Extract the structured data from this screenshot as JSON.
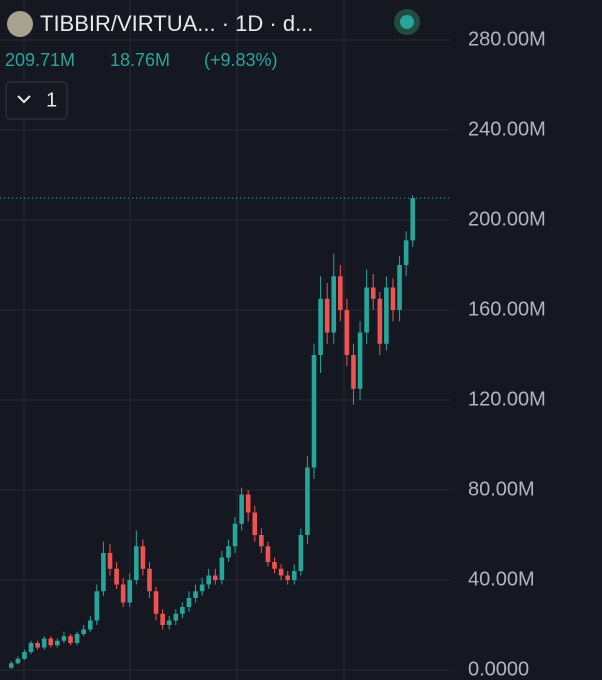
{
  "header": {
    "title": "TIBBIR/VIRTUA... · 1D · d...",
    "close": "209.71M",
    "change": "18.76M",
    "change_pct": "(+9.83%)",
    "indicator_count": "1"
  },
  "chart_data": {
    "type": "candlestick",
    "up_color": "#26a69a",
    "down_color": "#ef5350",
    "grid": true,
    "ylim": [
      -4.44,
      297.78
    ],
    "yticks": [
      {
        "value": 0,
        "label": "0.0000"
      },
      {
        "value": 40,
        "label": "40.00M"
      },
      {
        "value": 80,
        "label": "80.00M"
      },
      {
        "value": 120,
        "label": "120.00M"
      },
      {
        "value": 160,
        "label": "160.00M"
      },
      {
        "value": 200,
        "label": "200.00M"
      },
      {
        "value": 240,
        "label": "240.00M"
      },
      {
        "value": 280,
        "label": "280.00M"
      }
    ],
    "open": [
      1,
      3,
      5,
      8,
      12,
      10,
      14,
      11,
      13,
      15,
      12,
      16,
      18,
      22,
      35,
      52,
      45,
      38,
      30,
      40,
      55,
      45,
      35,
      25,
      20,
      22,
      25,
      28,
      32,
      35,
      38,
      42,
      40,
      50,
      55,
      65,
      78,
      70,
      60,
      55,
      48,
      45,
      42,
      40,
      44,
      60,
      90,
      140,
      165,
      150,
      175,
      160,
      140,
      125,
      150,
      170,
      165,
      145,
      170,
      160,
      180,
      190.95
    ],
    "high": [
      4,
      6,
      9,
      13,
      13,
      15,
      15,
      14,
      17,
      16,
      17,
      20,
      24,
      38,
      57,
      56,
      48,
      41,
      43,
      62,
      58,
      48,
      37,
      27,
      24,
      27,
      30,
      35,
      38,
      41,
      45,
      45,
      53,
      58,
      68,
      81,
      80,
      73,
      63,
      57,
      50,
      47,
      44,
      47,
      63,
      95,
      145,
      175,
      172,
      185,
      180,
      165,
      145,
      155,
      178,
      176,
      168,
      175,
      174,
      184,
      195,
      211
    ],
    "low": [
      0.5,
      2.5,
      4.5,
      7,
      9,
      9,
      10,
      10,
      12,
      11,
      11,
      15,
      17,
      20,
      33,
      42,
      36,
      28,
      28,
      38,
      42,
      32,
      22,
      18,
      18,
      20,
      23,
      26,
      30,
      33,
      36,
      38,
      38,
      48,
      52,
      62,
      66,
      57,
      52,
      46,
      43,
      40,
      38,
      38,
      42,
      56,
      85,
      132,
      145,
      145,
      155,
      135,
      118,
      120,
      145,
      160,
      140,
      142,
      155,
      155,
      175,
      188
    ],
    "close": [
      3,
      5,
      8,
      12,
      10,
      14,
      11,
      13,
      15,
      12,
      16,
      18,
      22,
      35,
      52,
      45,
      38,
      30,
      40,
      55,
      45,
      35,
      25,
      20,
      22,
      25,
      28,
      32,
      35,
      38,
      42,
      40,
      50,
      55,
      65,
      78,
      70,
      60,
      55,
      48,
      45,
      42,
      40,
      44,
      60,
      90,
      140,
      165,
      150,
      175,
      160,
      140,
      125,
      150,
      170,
      165,
      145,
      170,
      160,
      180,
      190.95,
      209.71
    ]
  }
}
